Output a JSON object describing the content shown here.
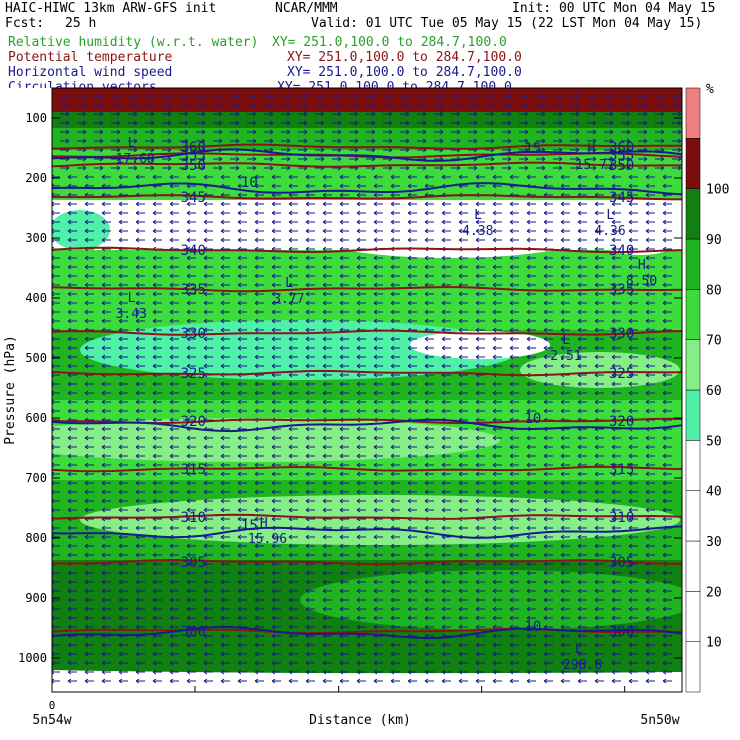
{
  "header": {
    "line1_left": "HAIC-HIWC 13km ARW-GFS init",
    "line1_center": "NCAR/MMM",
    "line1_right": "Init: 00 UTC Mon 04 May 15",
    "line2_left": "Fcst:",
    "line2_fcst": "25 h",
    "line2_right": "Valid: 01 UTC Tue 05 May 15 (22 LST Mon 04 May 15)",
    "fields": [
      {
        "name": "Relative humidity (w.r.t. water)",
        "xy": "XY= 251.0,100.0 to 284.7,100.0",
        "color": "#2aa02a"
      },
      {
        "name": "Potential temperature",
        "xy": "XY= 251.0,100.0 to 284.7,100.0",
        "color": "#8b1414"
      },
      {
        "name": "Horizontal wind speed",
        "xy": "XY= 251.0,100.0 to 284.7,100.0",
        "color": "#1a1a8c"
      },
      {
        "name": "Circulation vectors",
        "xy": "XY= 251.0,100.0 to 284.7,100.0",
        "color": "#1a1a8c"
      }
    ]
  },
  "chart_data": {
    "type": "heatmap",
    "title": "",
    "xlabel": "Distance (km)",
    "ylabel": "Pressure (hPa)",
    "x_tick_labels": [
      "0"
    ],
    "x_end_labels": [
      "5n54w",
      "5n50w"
    ],
    "y_ticks": [
      100,
      200,
      300,
      400,
      500,
      600,
      700,
      800,
      900,
      1000
    ],
    "colorbar": {
      "unit": "%",
      "levels": [
        10,
        20,
        30,
        40,
        50,
        60,
        70,
        80,
        90,
        100
      ],
      "colors": [
        "#ffffff",
        "#ffffff",
        "#ffffff",
        "#ffffff",
        "#ffffff",
        "#4ff0a8",
        "#86ee86",
        "#3cdc3c",
        "#20b420",
        "#108010",
        "#7b0d0d",
        "#f08080"
      ]
    },
    "theta_contours": [
      {
        "value": 360,
        "p": 148
      },
      {
        "value": 355,
        "p": 162
      },
      {
        "value": 350,
        "p": 178
      },
      {
        "value": 345,
        "p": 232
      },
      {
        "value": 340,
        "p": 320
      },
      {
        "value": 335,
        "p": 385
      },
      {
        "value": 330,
        "p": 458
      },
      {
        "value": 325,
        "p": 525
      },
      {
        "value": 320,
        "p": 605
      },
      {
        "value": 315,
        "p": 685
      },
      {
        "value": 310,
        "p": 765
      },
      {
        "value": 305,
        "p": 840
      },
      {
        "value": 300,
        "p": 955
      }
    ],
    "wind_contours": [
      {
        "value": 15,
        "p": 162
      },
      {
        "value": 10,
        "p": 218
      },
      {
        "value": 10,
        "p": 612
      },
      {
        "value": 15,
        "p": 790
      },
      {
        "value": 10,
        "p": 958
      }
    ],
    "extrema": [
      {
        "type": "L",
        "value": "17.68",
        "x_frac": 0.12,
        "p": 162
      },
      {
        "type": "L",
        "value": "4.38",
        "x_frac": 0.67,
        "p": 282
      },
      {
        "type": "L",
        "value": "4.36",
        "x_frac": 0.88,
        "p": 282
      },
      {
        "type": "L",
        "value": "3.77",
        "x_frac": 0.37,
        "p": 395
      },
      {
        "type": "L",
        "value": "3.43",
        "x_frac": 0.12,
        "p": 420
      },
      {
        "type": "L",
        "value": "2.51",
        "x_frac": 0.81,
        "p": 490
      },
      {
        "type": "H",
        "value": "15.77",
        "x_frac": 0.85,
        "p": 172
      },
      {
        "type": "H",
        "value": "8.50",
        "x_frac": 0.93,
        "p": 365
      },
      {
        "type": "H",
        "value": "15.96",
        "x_frac": 0.33,
        "p": 795
      },
      {
        "type": "L",
        "value": "298.8",
        "x_frac": 0.83,
        "p": 1005
      }
    ]
  }
}
